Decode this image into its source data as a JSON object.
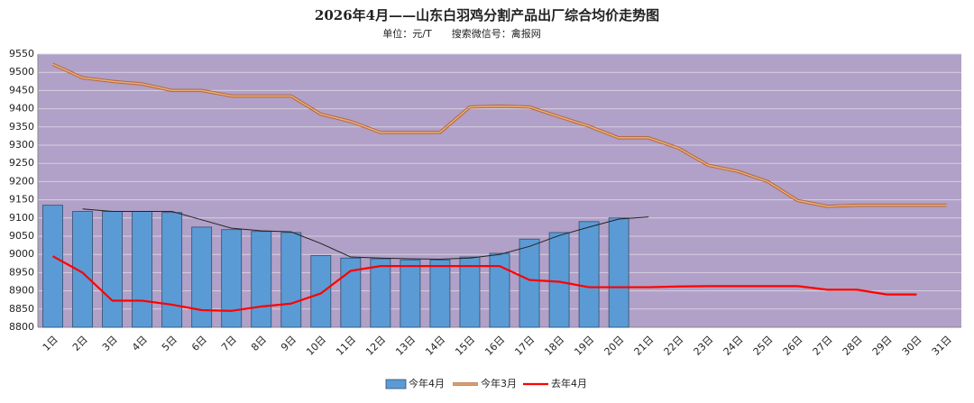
{
  "chart_data": {
    "type": "bar_line",
    "title": "2026年4月——山东白羽鸡分割产品出厂综合均价走势图",
    "subtitle": "单位：元/T　　搜索微信号：禽报网",
    "categories": [
      "1日",
      "2日",
      "3日",
      "4日",
      "5日",
      "6日",
      "7日",
      "8日",
      "9日",
      "10日",
      "11日",
      "12日",
      "13日",
      "14日",
      "15日",
      "16日",
      "17日",
      "18日",
      "19日",
      "20日",
      "21日",
      "22日",
      "23日",
      "24日",
      "25日",
      "26日",
      "27日",
      "28日",
      "29日",
      "30日",
      "31日"
    ],
    "ylim": [
      8800,
      9550
    ],
    "yticks": [
      8800,
      8850,
      8900,
      8950,
      9000,
      9050,
      9100,
      9150,
      9200,
      9250,
      9300,
      9350,
      9400,
      9450,
      9500,
      9550
    ],
    "grid": true,
    "background": "#b1a0c7",
    "series": [
      {
        "name": "今年4月",
        "kind": "bar",
        "color": "#5b9bd5",
        "values": [
          9135,
          9118,
          9118,
          9118,
          9115,
          9075,
          9068,
          9063,
          9060,
          8997,
          8990,
          8988,
          8985,
          8985,
          8993,
          9003,
          9042,
          9060,
          9090,
          9100,
          null,
          null,
          null,
          null,
          null,
          null,
          null,
          null,
          null,
          null,
          null
        ]
      },
      {
        "name": "今年3月",
        "kind": "line",
        "color": "#e8b07a",
        "values": [
          9522,
          9485,
          9475,
          9468,
          9450,
          9450,
          9435,
          9435,
          9435,
          9385,
          9365,
          9335,
          9335,
          9335,
          9405,
          9407,
          9405,
          9378,
          9352,
          9320,
          9320,
          9292,
          9245,
          9228,
          9200,
          9148,
          9132,
          9135,
          9135,
          9135,
          9135
        ]
      },
      {
        "name": "去年4月",
        "kind": "line",
        "color": "#ff0000",
        "values": [
          8995,
          8950,
          8873,
          8873,
          8862,
          8847,
          8845,
          8857,
          8865,
          8893,
          8955,
          8968,
          8968,
          8968,
          8968,
          8968,
          8930,
          8925,
          8910,
          8910,
          8910,
          8912,
          8913,
          8913,
          8913,
          8913,
          8903,
          8903,
          8890,
          8890,
          null
        ]
      }
    ],
    "trendline": {
      "color": "#222222",
      "values": [
        null,
        9125,
        9118,
        9118,
        9118,
        9095,
        9072,
        9065,
        9062,
        9030,
        8993,
        8990,
        8988,
        8987,
        8990,
        9000,
        9022,
        9052,
        9075,
        9097,
        9103,
        null,
        null,
        null,
        null,
        null,
        null,
        null,
        null,
        null,
        null
      ]
    }
  }
}
